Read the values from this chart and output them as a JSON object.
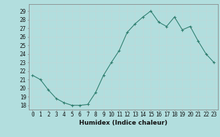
{
  "x": [
    0,
    1,
    2,
    3,
    4,
    5,
    6,
    7,
    8,
    9,
    10,
    11,
    12,
    13,
    14,
    15,
    16,
    17,
    18,
    19,
    20,
    21,
    22,
    23
  ],
  "y": [
    21.5,
    21.0,
    19.8,
    18.8,
    18.3,
    18.0,
    18.0,
    18.1,
    19.5,
    21.5,
    23.0,
    24.4,
    26.5,
    27.5,
    28.3,
    29.0,
    27.7,
    27.2,
    28.3,
    26.8,
    27.2,
    25.5,
    24.0,
    23.0
  ],
  "line_color": "#2e7d6e",
  "bg_color": "#b2dede",
  "grid_color": "#c0d8d8",
  "ylabel_values": [
    18,
    19,
    20,
    21,
    22,
    23,
    24,
    25,
    26,
    27,
    28,
    29
  ],
  "xlabel": "Humidex (Indice chaleur)",
  "ylim": [
    17.5,
    29.8
  ],
  "xlim": [
    -0.5,
    23.5
  ]
}
